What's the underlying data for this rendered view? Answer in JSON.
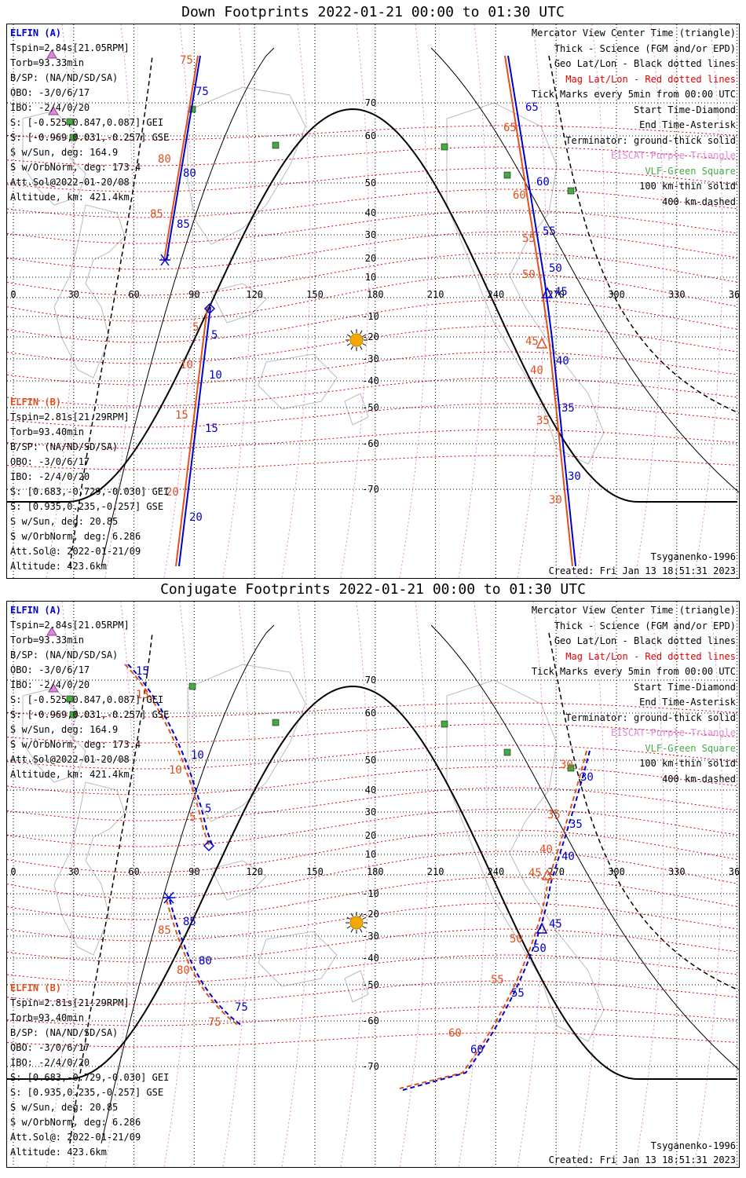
{
  "panels": [
    {
      "title": "Down Footprints 2022-01-21 00:00 to 01:30 UTC",
      "kind": "down"
    },
    {
      "title": "Conjugate Footprints 2022-01-21 00:00 to 01:30 UTC",
      "kind": "conj"
    }
  ],
  "satA": {
    "name": "ELFIN (A)",
    "lines": [
      "Tspin=2.84s[21.05RPM]",
      "Torb=93.33min",
      "B/SP: (NA/ND/SD/SA)",
      "OBO: -3/0/6/17",
      "IBO: -2/4/0/20",
      "S: [-0.525,0.847,0.087] GEI",
      "S: [-0.969,0.031,-0.257] GSE",
      "S w/Sun, deg: 164.9",
      "S w/OrbNorm, deg: 173.4",
      "Att.Sol@2022-01-20/08",
      "Altitude, km: 421.4km"
    ]
  },
  "satB": {
    "name": "ELFIN (B)",
    "lines": [
      "Tspin=2.81s[21.29RPM]",
      "Torb=93.40min",
      "B/SP: (NA/ND/SD/SA)",
      "OBO: -3/0/6/17",
      "IBO: -2/4/0/20",
      "S: [0.683,-0.729,-0.030] GEI",
      "S: [0.935,0.235,-0.257] GSE",
      "S w/Sun, deg: 20.85",
      "S w/OrbNorm, deg: 6.286",
      "Att.Sol@: 2022-01-21/09",
      "Altitude: 423.6km"
    ]
  },
  "legend": [
    {
      "text": "Mercator View Center Time (triangle)",
      "color": "#000000"
    },
    {
      "text": "Thick - Science (FGM and/or EPD)",
      "color": "#000000"
    },
    {
      "text": "Geo Lat/Lon - Black dotted lines",
      "color": "#000000"
    },
    {
      "text": "Mag Lat/Lon - Red dotted lines",
      "color": "#e00000"
    },
    {
      "text": "Tick Marks every 5min from 00:00 UTC",
      "color": "#000000"
    },
    {
      "text": "Start Time-Diamond",
      "color": "#000000"
    },
    {
      "text": "End Time-Asterisk",
      "color": "#000000"
    },
    {
      "text": "Terminator: ground-thick solid",
      "color": "#000000"
    },
    {
      "text": "EISCAT-Purple Triangle",
      "color": "#dd88dd"
    },
    {
      "text": "VLF-Green Square",
      "color": "#44aa44"
    },
    {
      "text": "100 km-thin solid",
      "color": "#000000"
    },
    {
      "text": "400 km-dashed",
      "color": "#000000"
    }
  ],
  "model": "Tsyganenko-1996",
  "created": "Created: Fri Jan 13 18:51:31 2023",
  "lon_ticks": [
    "0",
    "30",
    "60",
    "90",
    "120",
    "150",
    "180",
    "210",
    "240",
    "270",
    "300",
    "330",
    "360"
  ],
  "lat_ticks": [
    "70",
    "60",
    "50",
    "40",
    "30",
    "20",
    "10",
    "-10",
    "-20",
    "-30",
    "-40",
    "-50",
    "-60",
    "-70"
  ],
  "down": {
    "a_left_labels": [
      "75",
      "80",
      "85",
      "5",
      "10",
      "15",
      "20"
    ],
    "a_right_labels": [
      "65",
      "60",
      "55",
      "50",
      "45",
      "40",
      "35",
      "30"
    ]
  },
  "conj": {
    "a_left_labels": [
      "15",
      "10",
      "5",
      "85",
      "80",
      "75"
    ],
    "a_right_labels": [
      "30",
      "35",
      "40",
      "45",
      "50",
      "55",
      "60"
    ]
  }
}
